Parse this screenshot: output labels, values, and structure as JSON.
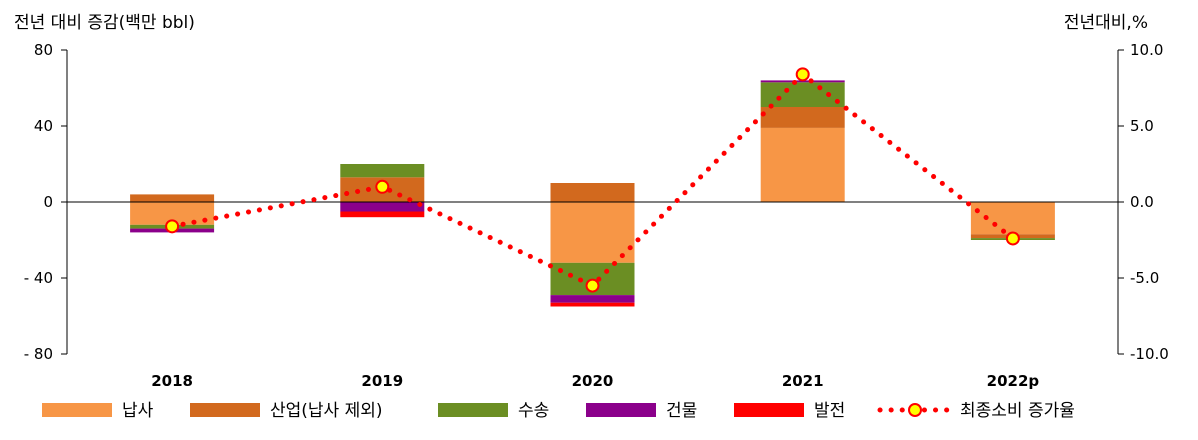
{
  "chart_data": {
    "type": "bar",
    "stacked": true,
    "ylabel": "전년 대비 증감(백만 bbl)",
    "y2label": "전년대비,%",
    "categories": [
      "2018",
      "2019",
      "2020",
      "2021",
      "2022p"
    ],
    "ylim": [
      -80,
      80
    ],
    "yticks": [
      80,
      40,
      0,
      -40,
      -80
    ],
    "ytick_labels": [
      "80",
      "40",
      "0",
      "- 40",
      "- 80"
    ],
    "y2lim": [
      -10,
      10
    ],
    "y2ticks": [
      10,
      5,
      0,
      -5,
      -10
    ],
    "y2tick_labels": [
      "10.0",
      "5.0",
      "0.0",
      "-5.0",
      "-10.0"
    ],
    "series": [
      {
        "name": "납사",
        "color": "#F79646",
        "values": [
          -12,
          0,
          -32,
          39,
          -17
        ]
      },
      {
        "name": "산업(납사 제외)",
        "color": "#D2691E",
        "values": [
          4,
          13,
          10,
          11,
          -2
        ]
      },
      {
        "name": "수송",
        "color": "#6B8E23",
        "values": [
          -2,
          7,
          -17,
          13,
          -1
        ]
      },
      {
        "name": "건물",
        "color": "#8B008B",
        "values": [
          -2,
          -5,
          -4,
          1,
          0
        ]
      },
      {
        "name": "발전",
        "color": "#FF0000",
        "values": [
          0,
          -3,
          -2,
          0,
          0
        ]
      }
    ],
    "line": {
      "name": "최종소비 증가율",
      "color": "#FF0000",
      "marker_fill": "#FFFF00",
      "axis": "right",
      "values": [
        -1.6,
        1.0,
        -5.5,
        8.4,
        -2.4
      ]
    },
    "grid": false,
    "legend": "bottom"
  }
}
